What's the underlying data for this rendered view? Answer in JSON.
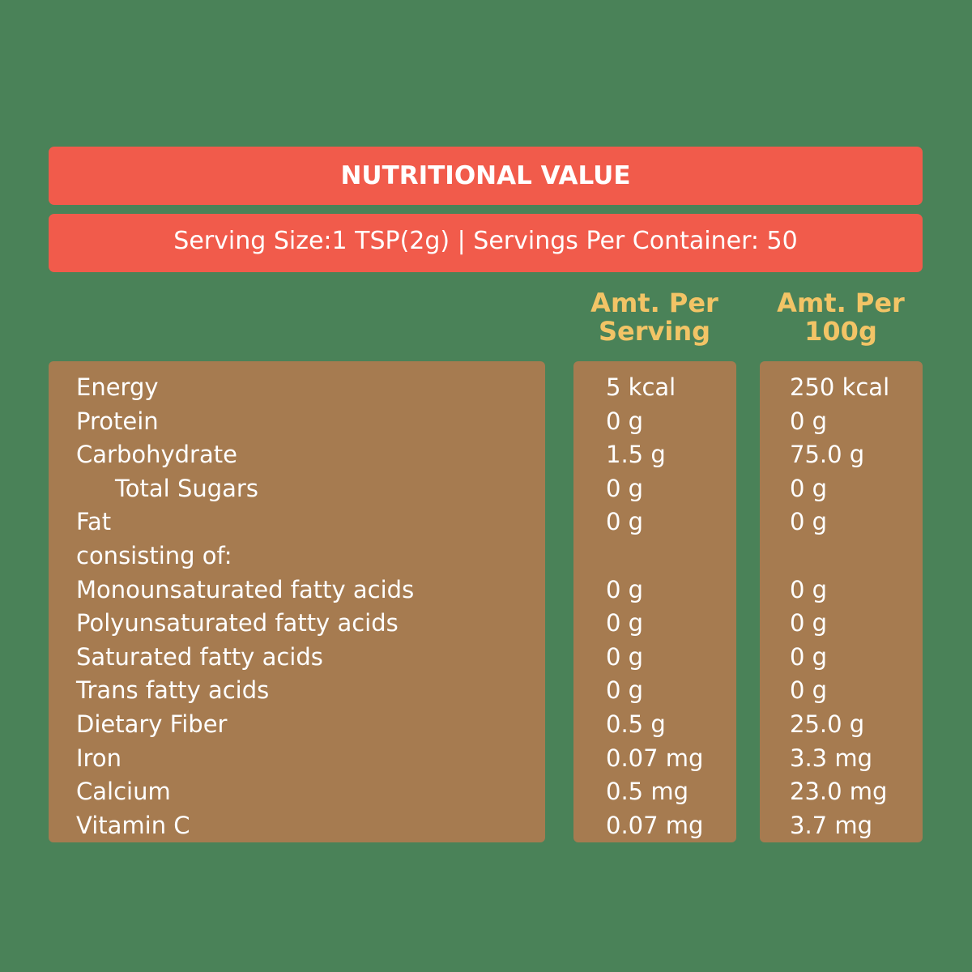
{
  "header": {
    "title": "NUTRITIONAL VALUE",
    "serving_info": "Serving Size:1 TSP(2g) | Servings Per Container: 50"
  },
  "columns": {
    "per_serving": [
      "Amt. Per",
      "Serving"
    ],
    "per_100g": [
      "Amt. Per",
      "100g"
    ]
  },
  "rows": [
    {
      "label": "Energy",
      "per_serving": "5 kcal",
      "per_100g": "250 kcal"
    },
    {
      "label": "Protein",
      "per_serving": "0 g",
      "per_100g": "0 g"
    },
    {
      "label": "Carbohydrate",
      "per_serving": "1.5 g",
      "per_100g": "75.0 g"
    },
    {
      "label": "Total Sugars",
      "per_serving": "0 g",
      "per_100g": "0 g"
    },
    {
      "label": "Fat",
      "per_serving": "0 g",
      "per_100g": "0 g"
    },
    {
      "label": "consisting of:",
      "per_serving": "",
      "per_100g": ""
    },
    {
      "label": "Monounsaturated fatty acids",
      "per_serving": "0 g",
      "per_100g": "0 g"
    },
    {
      "label": "Polyunsaturated fatty acids",
      "per_serving": "0 g",
      "per_100g": "0 g"
    },
    {
      "label": "Saturated fatty acids",
      "per_serving": "0 g",
      "per_100g": "0 g"
    },
    {
      "label": "Trans fatty acids",
      "per_serving": "0 g",
      "per_100g": "0 g"
    },
    {
      "label": "Dietary Fiber",
      "per_serving": "0.5 g",
      "per_100g": "25.0 g"
    },
    {
      "label": "Iron",
      "per_serving": "0.07 mg",
      "per_100g": "3.3 mg"
    },
    {
      "label": "Calcium",
      "per_serving": "0.5 mg",
      "per_100g": "23.0 mg"
    },
    {
      "label": "Vitamin C",
      "per_serving": "0.07 mg",
      "per_100g": "3.7 mg"
    }
  ],
  "colors": {
    "background": "#4a8258",
    "banner": "#f15b4b",
    "panel": "#a67b50",
    "column_heading": "#f2c466"
  }
}
